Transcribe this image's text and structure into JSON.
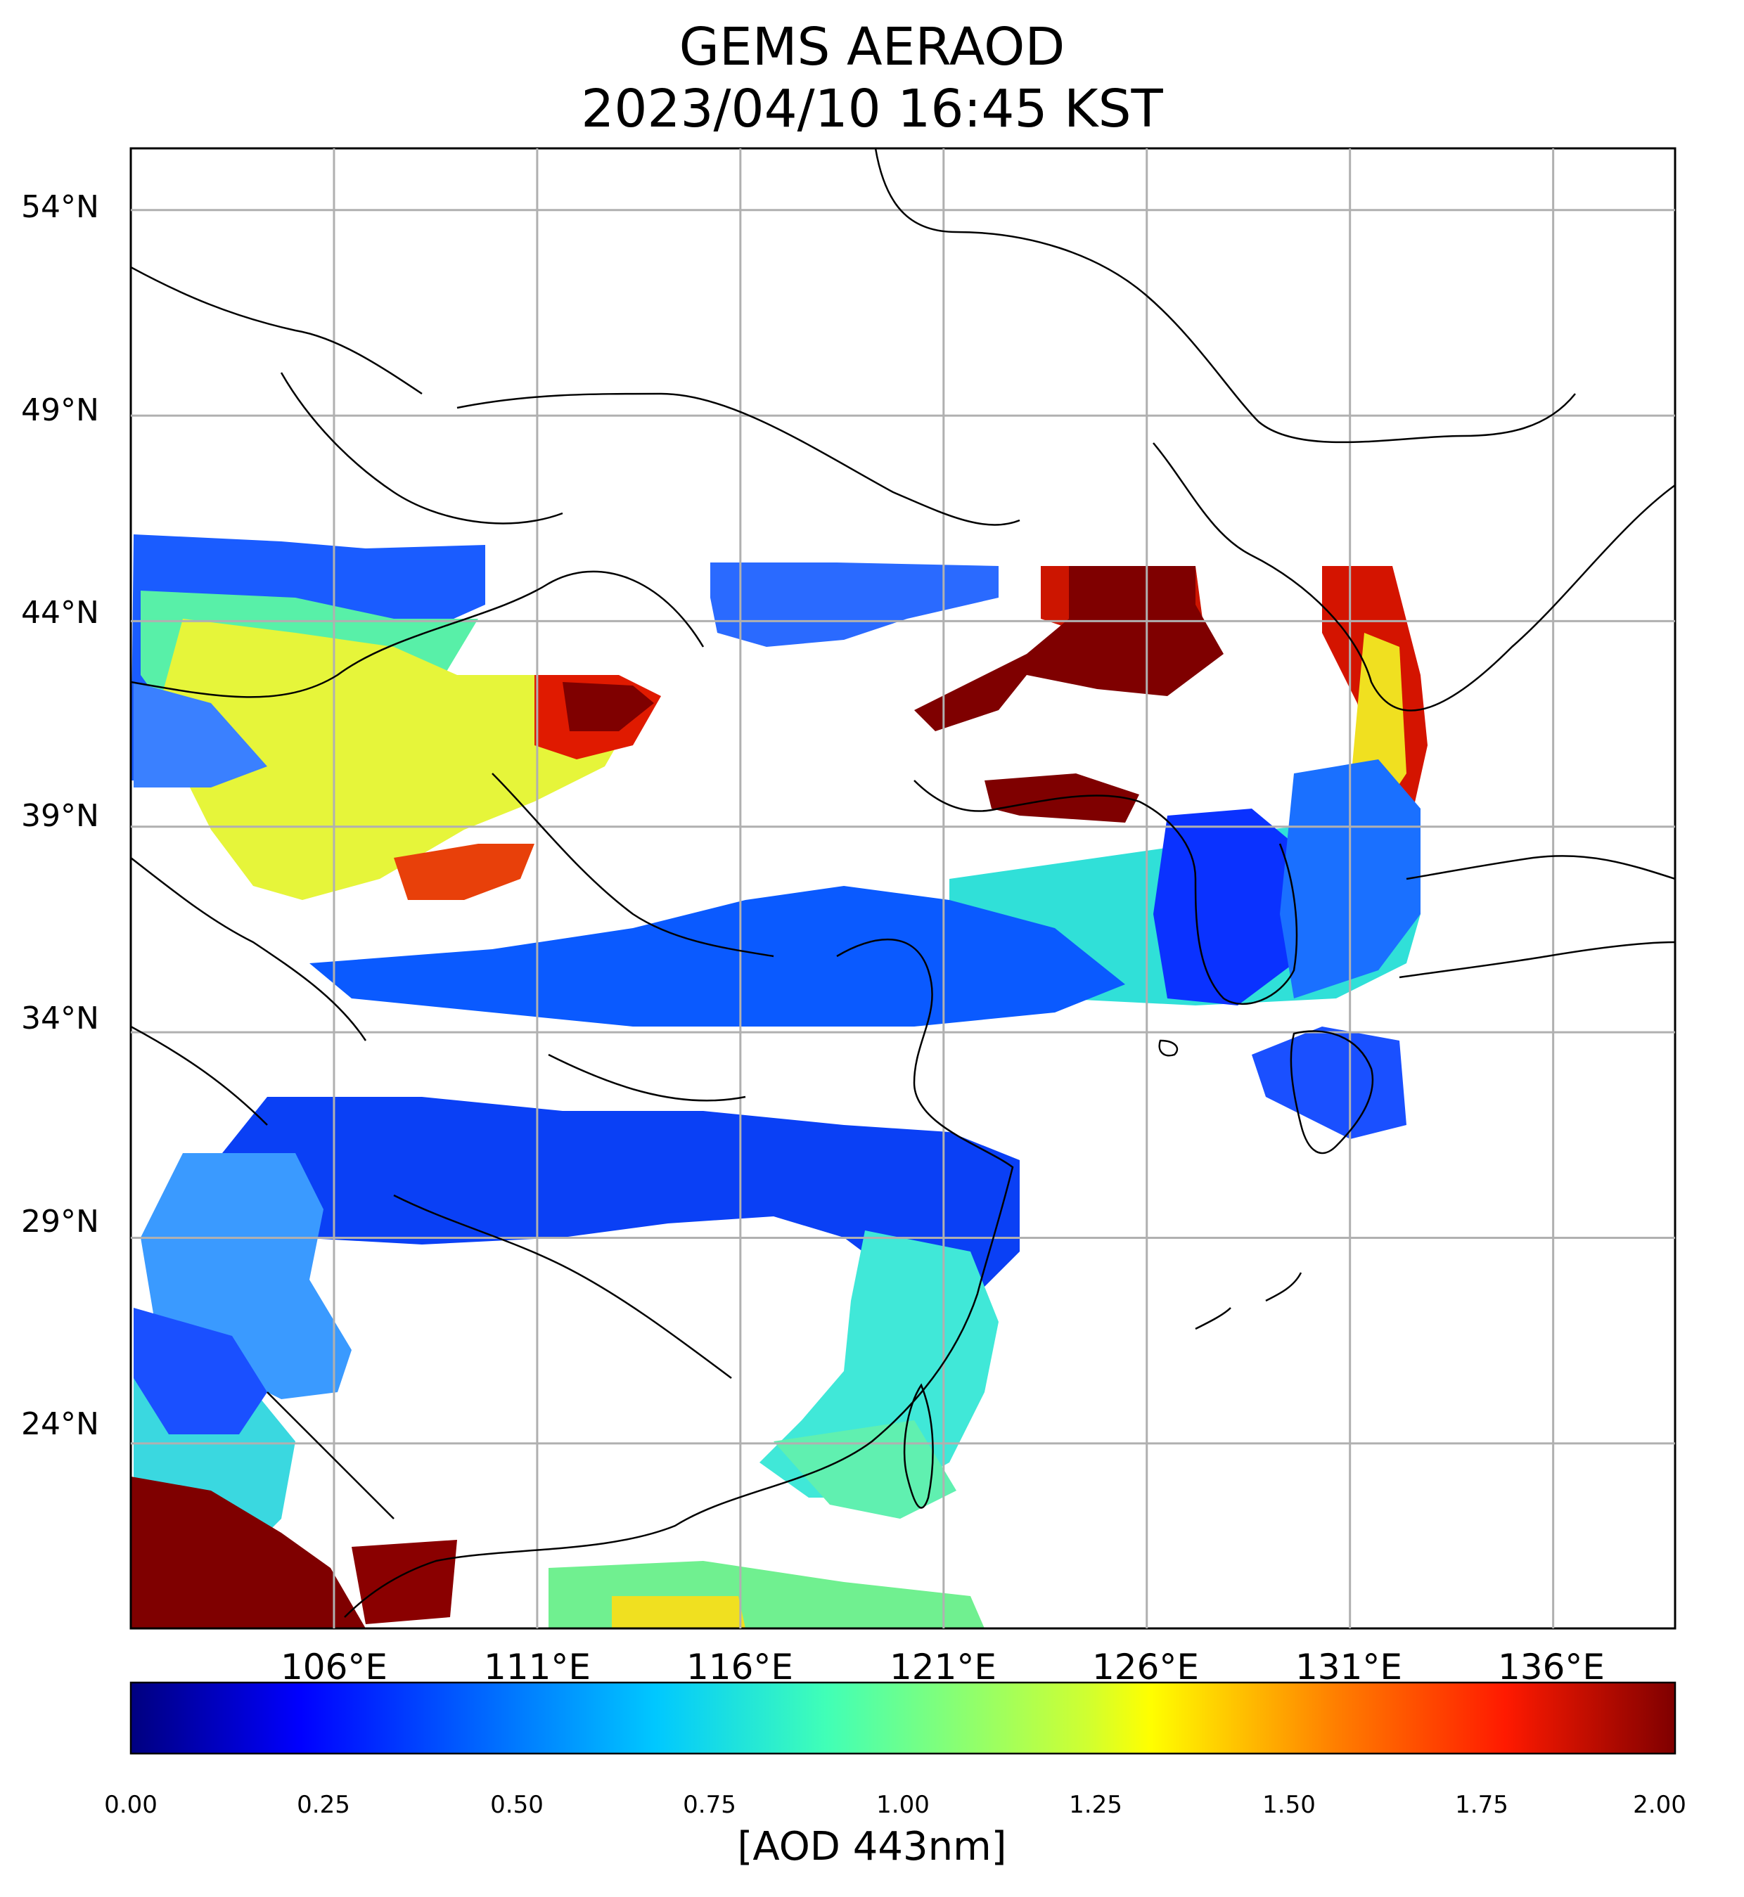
{
  "title": {
    "line1": "GEMS AERAOD",
    "line2": "2023/04/10 16:45 KST"
  },
  "map": {
    "product": "AOD 443nm",
    "lat_labels": [
      "54°N",
      "49°N",
      "44°N",
      "39°N",
      "34°N",
      "29°N",
      "24°N"
    ],
    "lat_values": [
      54,
      49,
      44,
      39,
      34,
      29,
      24
    ],
    "lon_labels": [
      "106°E",
      "111°E",
      "116°E",
      "121°E",
      "126°E",
      "131°E",
      "136°E"
    ],
    "lon_values": [
      106,
      111,
      116,
      121,
      126,
      131,
      136
    ],
    "lat_range": [
      19.5,
      55.5
    ],
    "lon_range": [
      101,
      139
    ],
    "grid": true
  },
  "colorbar": {
    "colormap": "jet",
    "range": [
      0.0,
      2.0
    ],
    "ticks": [
      "0.00",
      "0.25",
      "0.50",
      "0.75",
      "1.00",
      "1.25",
      "1.50",
      "1.75",
      "2.00"
    ],
    "label": "[AOD 443nm]",
    "colors": [
      "#00007f",
      "#0000ff",
      "#007fff",
      "#00e5f7",
      "#40ffb7",
      "#b7ff40",
      "#ffea00",
      "#ff7f00",
      "#ff1a00",
      "#7f0000"
    ]
  }
}
